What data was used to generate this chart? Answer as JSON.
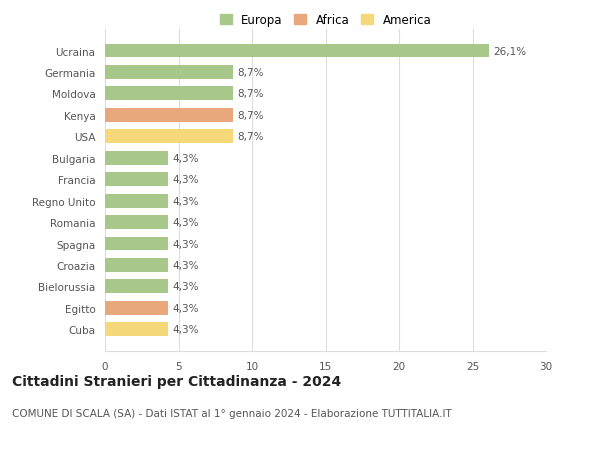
{
  "categories": [
    "Ucraina",
    "Germania",
    "Moldova",
    "Kenya",
    "USA",
    "Bulgaria",
    "Francia",
    "Regno Unito",
    "Romania",
    "Spagna",
    "Croazia",
    "Bielorussia",
    "Egitto",
    "Cuba"
  ],
  "values": [
    26.1,
    8.7,
    8.7,
    8.7,
    8.7,
    4.3,
    4.3,
    4.3,
    4.3,
    4.3,
    4.3,
    4.3,
    4.3,
    4.3
  ],
  "labels": [
    "26,1%",
    "8,7%",
    "8,7%",
    "8,7%",
    "8,7%",
    "4,3%",
    "4,3%",
    "4,3%",
    "4,3%",
    "4,3%",
    "4,3%",
    "4,3%",
    "4,3%",
    "4,3%"
  ],
  "colors": [
    "#a8c78a",
    "#a8c78a",
    "#a8c78a",
    "#e8a87c",
    "#f5d87a",
    "#a8c78a",
    "#a8c78a",
    "#a8c78a",
    "#a8c78a",
    "#a8c78a",
    "#a8c78a",
    "#a8c78a",
    "#e8a87c",
    "#f5d87a"
  ],
  "legend_labels": [
    "Europa",
    "Africa",
    "America"
  ],
  "legend_colors": [
    "#a8c78a",
    "#e8a87c",
    "#f5d87a"
  ],
  "title": "Cittadini Stranieri per Cittadinanza - 2024",
  "subtitle": "COMUNE DI SCALA (SA) - Dati ISTAT al 1° gennaio 2024 - Elaborazione TUTTITALIA.IT",
  "xlim": [
    0,
    30
  ],
  "xticks": [
    0,
    5,
    10,
    15,
    20,
    25,
    30
  ],
  "background_color": "#ffffff",
  "bar_height": 0.65,
  "grid_color": "#dddddd",
  "text_color": "#555555",
  "title_fontsize": 10,
  "subtitle_fontsize": 7.5,
  "label_fontsize": 7.5,
  "tick_fontsize": 7.5,
  "legend_fontsize": 8.5
}
